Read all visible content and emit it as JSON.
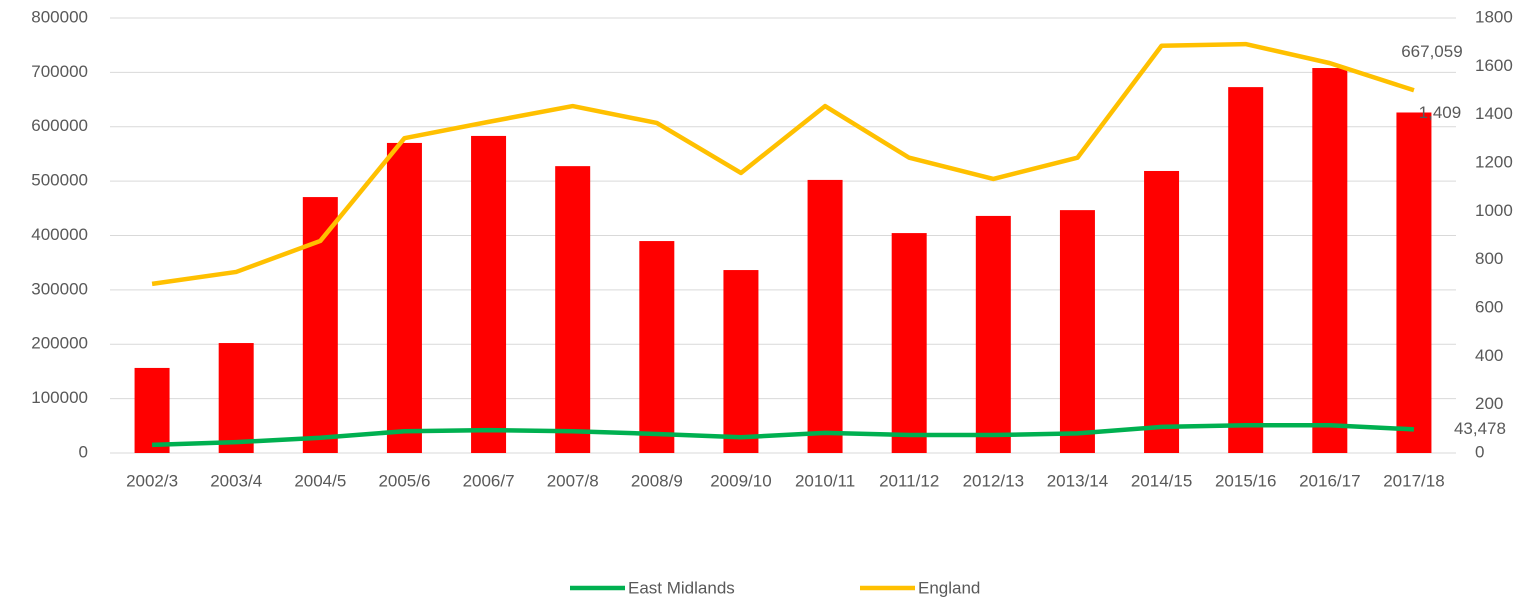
{
  "chart_data": {
    "type": "bar_line",
    "categories": [
      "2002/3",
      "2003/4",
      "2004/5",
      "2005/6",
      "2006/7",
      "2007/8",
      "2008/9",
      "2009/10",
      "2010/11",
      "2011/12",
      "2012/13",
      "2013/14",
      "2014/15",
      "2015/16",
      "2016/17",
      "2017/18"
    ],
    "series": [
      {
        "type": "bar",
        "axis": "y2",
        "color": "#ff0000",
        "values": [
          352,
          455,
          1059,
          1283,
          1312,
          1187,
          877,
          757,
          1130,
          910,
          981,
          1005,
          1167,
          1514,
          1593,
          1409
        ],
        "value_labels": [
          null,
          null,
          null,
          null,
          null,
          null,
          null,
          null,
          null,
          null,
          null,
          null,
          null,
          null,
          null,
          "1,409"
        ]
      },
      {
        "type": "line",
        "name": "East Midlands",
        "color": "#00b050",
        "values": [
          15000,
          20000,
          28000,
          40000,
          42000,
          40000,
          35000,
          29000,
          37000,
          33000,
          33000,
          36000,
          48000,
          51000,
          51000,
          43478
        ],
        "value_labels": [
          null,
          null,
          null,
          null,
          null,
          null,
          null,
          null,
          null,
          null,
          null,
          null,
          null,
          null,
          null,
          "43,478"
        ]
      },
      {
        "type": "line",
        "name": "England",
        "color": "#ffc000",
        "values": [
          311000,
          333000,
          390000,
          579000,
          609000,
          638000,
          607000,
          515000,
          638000,
          543000,
          504000,
          543000,
          749000,
          752000,
          717000,
          667059
        ],
        "value_labels": [
          null,
          null,
          null,
          null,
          null,
          null,
          null,
          null,
          null,
          null,
          null,
          null,
          null,
          null,
          null,
          "667,059"
        ]
      }
    ],
    "ylim": [
      0,
      800000
    ],
    "yticks": [
      0,
      100000,
      200000,
      300000,
      400000,
      500000,
      600000,
      700000,
      800000
    ],
    "y2lim": [
      0,
      1800
    ],
    "y2ticks": [
      0,
      200,
      400,
      600,
      800,
      1000,
      1200,
      1400,
      1600,
      1800
    ],
    "grid": true,
    "legend": "bottom"
  }
}
